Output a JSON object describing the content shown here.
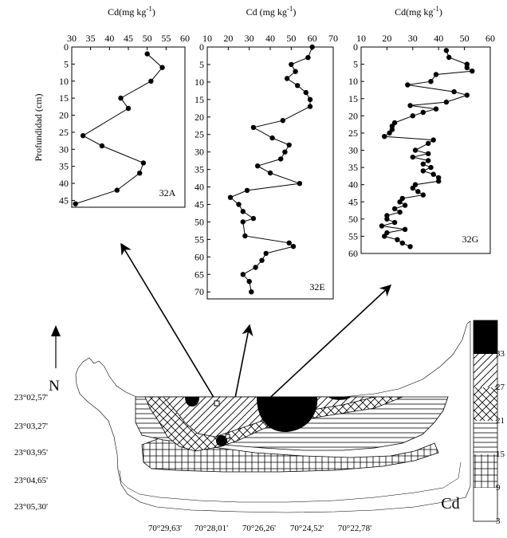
{
  "chart_data": [
    {
      "type": "line",
      "title": "Cd(mg kg-1)",
      "panel_label": "32A",
      "ylabel": "Profundidad (cm)",
      "xlim": [
        30,
        60
      ],
      "ylim": [
        0,
        47
      ],
      "x_ticks": [
        "30",
        "35",
        "40",
        "45",
        "50",
        "55",
        "60"
      ],
      "y_ticks": [
        "0",
        "5",
        "10",
        "15",
        "20",
        "25",
        "30",
        "35",
        "40",
        "45"
      ],
      "series": [
        {
          "points": [
            [
              50,
              2
            ],
            [
              54,
              6
            ],
            [
              51,
              10
            ],
            [
              43,
              15
            ],
            [
              45,
              18
            ],
            [
              33,
              26
            ],
            [
              38,
              29
            ],
            [
              49,
              34
            ],
            [
              48,
              37
            ],
            [
              42,
              42
            ],
            [
              31,
              46
            ]
          ]
        }
      ]
    },
    {
      "type": "line",
      "title": "Cd (mg kg-1)",
      "panel_label": "32E",
      "xlim": [
        10,
        70
      ],
      "ylim": [
        0,
        72
      ],
      "x_ticks": [
        "10",
        "20",
        "30",
        "40",
        "50",
        "60",
        "70"
      ],
      "y_ticks": [
        "0",
        "5",
        "10",
        "15",
        "20",
        "25",
        "30",
        "35",
        "40",
        "45",
        "50",
        "55",
        "60",
        "65",
        "70"
      ],
      "series": [
        {
          "points": [
            [
              60,
              0
            ],
            [
              58,
              3
            ],
            [
              50,
              5
            ],
            [
              52,
              7
            ],
            [
              48,
              9
            ],
            [
              53,
              11
            ],
            [
              57,
              13
            ],
            [
              59,
              15
            ],
            [
              59,
              17
            ],
            [
              46,
              21
            ],
            [
              32,
              23
            ],
            [
              41,
              26
            ],
            [
              49,
              28
            ],
            [
              47,
              30
            ],
            [
              45,
              32
            ],
            [
              34,
              34
            ],
            [
              40,
              36
            ],
            [
              54,
              39
            ],
            [
              29,
              41
            ],
            [
              21,
              43
            ],
            [
              25,
              45
            ],
            [
              27,
              47
            ],
            [
              32,
              49
            ],
            [
              27,
              50
            ],
            [
              28,
              54
            ],
            [
              49,
              56
            ],
            [
              51,
              57
            ],
            [
              38,
              59
            ],
            [
              36,
              61
            ],
            [
              33,
              63
            ],
            [
              27,
              65
            ],
            [
              30,
              67
            ],
            [
              31,
              70
            ]
          ]
        }
      ]
    },
    {
      "type": "line",
      "title": "Cd(mg kg-1)",
      "panel_label": "32G",
      "xlim": [
        10,
        60
      ],
      "ylim": [
        0,
        60
      ],
      "x_ticks": [
        "10",
        "20",
        "30",
        "40",
        "50",
        "60"
      ],
      "y_ticks": [
        "0",
        "5",
        "10",
        "15",
        "20",
        "25",
        "30",
        "35",
        "40",
        "45",
        "50",
        "55",
        "60"
      ],
      "series": [
        {
          "points": [
            [
              43,
              1
            ],
            [
              44,
              3
            ],
            [
              51,
              5
            ],
            [
              51,
              6
            ],
            [
              53,
              7
            ],
            [
              39,
              8
            ],
            [
              37,
              10
            ],
            [
              28,
              11
            ],
            [
              46,
              13
            ],
            [
              51,
              14
            ],
            [
              43,
              16
            ],
            [
              29,
              17
            ],
            [
              39,
              18
            ],
            [
              34,
              19
            ],
            [
              30,
              20
            ],
            [
              23,
              22
            ],
            [
              22,
              23
            ],
            [
              22,
              24
            ],
            [
              21,
              25
            ],
            [
              19,
              26
            ],
            [
              38,
              27
            ],
            [
              36,
              28
            ],
            [
              31,
              30
            ],
            [
              36,
              31
            ],
            [
              30,
              32
            ],
            [
              36,
              33
            ],
            [
              34,
              34
            ],
            [
              37,
              35
            ],
            [
              34,
              36
            ],
            [
              38,
              37
            ],
            [
              40,
              38
            ],
            [
              40,
              39
            ],
            [
              31,
              40
            ],
            [
              30,
              41
            ],
            [
              32,
              42
            ],
            [
              34,
              43
            ],
            [
              26,
              44
            ],
            [
              25,
              45
            ],
            [
              27,
              46
            ],
            [
              23,
              47
            ],
            [
              25,
              48
            ],
            [
              20,
              49
            ],
            [
              20,
              50
            ],
            [
              23,
              51
            ],
            [
              18,
              52
            ],
            [
              27,
              53
            ],
            [
              20,
              54
            ],
            [
              19,
              55
            ],
            [
              24,
              56
            ],
            [
              26,
              57
            ],
            [
              29,
              58
            ]
          ]
        }
      ]
    }
  ],
  "map": {
    "north_label": "N",
    "variable_label": "Cd",
    "lat_labels": [
      "23°02,57'",
      "23°03,27'",
      "23°03,95'",
      "23°04,65'",
      "23°05,30'"
    ],
    "lon_labels": [
      "70°29,63'",
      "70°28,01'",
      "70°26,26'",
      "70°24,52'",
      "70°22,78'"
    ],
    "legend_labels": [
      "33",
      "27",
      "21",
      "15",
      "9",
      "3"
    ]
  }
}
